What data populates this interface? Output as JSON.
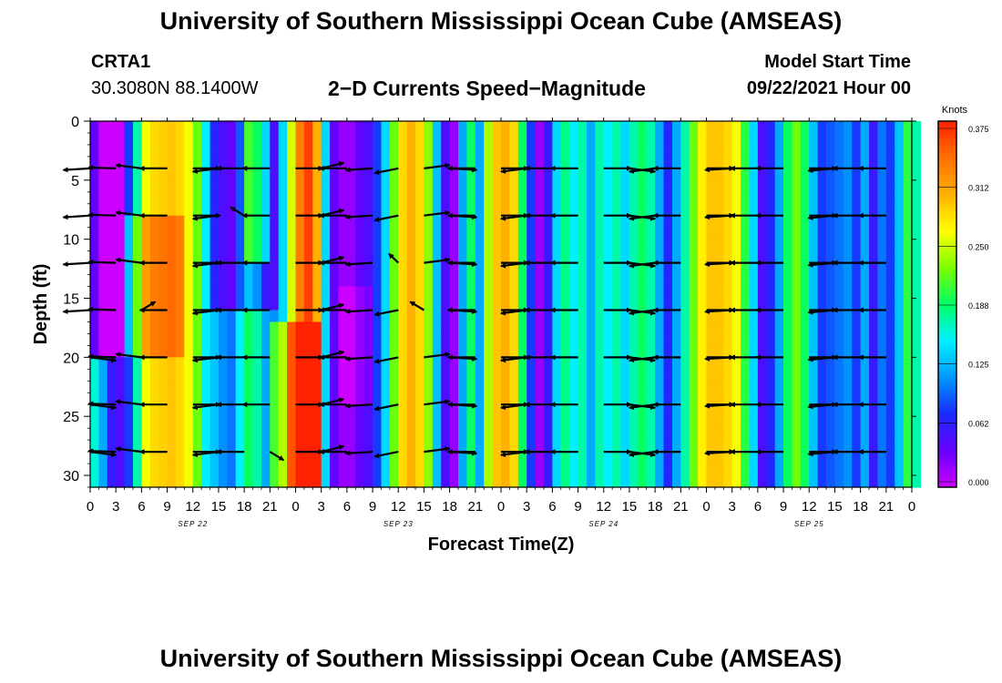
{
  "header": {
    "title": "University of Southern Mississippi Ocean Cube (AMSEAS)",
    "station_id": "CRTA1",
    "station_coords": "30.3080N  88.1400W",
    "chart_title": "2−D Currents Speed−Magnitude",
    "model_label": "Model Start Time",
    "model_date": "09/22/2021 Hour 00"
  },
  "footer": {
    "title": "University of Southern Mississippi Ocean Cube (AMSEAS)"
  },
  "chart_data": {
    "type": "heatmap",
    "title": "2−D Currents Speed−Magnitude",
    "xlabel": "Forecast Time(Z)",
    "ylabel": "Depth (ft)",
    "xlim": [
      0,
      96
    ],
    "ylim": [
      31,
      0
    ],
    "x_tick_labels": [
      "0",
      "3",
      "6",
      "9",
      "12",
      "15",
      "18",
      "21",
      "0",
      "3",
      "6",
      "9",
      "12",
      "15",
      "18",
      "21",
      "0",
      "3",
      "6",
      "9",
      "12",
      "15",
      "18",
      "21",
      "0",
      "3",
      "6",
      "9",
      "12",
      "15",
      "18",
      "21",
      "0"
    ],
    "date_labels": [
      {
        "label": "SEP 22",
        "hour": 12
      },
      {
        "label": "SEP 23",
        "hour": 36
      },
      {
        "label": "SEP 24",
        "hour": 60
      },
      {
        "label": "SEP 25",
        "hour": 84
      }
    ],
    "y_ticks": [
      0,
      5,
      10,
      15,
      20,
      25,
      30
    ],
    "y_tick_labels": [
      "0",
      "5",
      "10",
      "15",
      "20",
      "25",
      "30"
    ],
    "colorbar": {
      "unit": "Knots",
      "range": [
        0,
        0.375
      ],
      "ticks": [
        "0.375",
        "0.312",
        "0.250",
        "0.188",
        "0.125",
        "0.062",
        "0.000"
      ],
      "colors": [
        "#cc00ff",
        "#6600ff",
        "#1a2bff",
        "#0099ff",
        "#00f0ff",
        "#00ff66",
        "#7cff00",
        "#ffff00",
        "#ffb000",
        "#ff7000",
        "#ff2200"
      ]
    },
    "speed_by_hour": [
      0.16,
      0.12,
      0.06,
      0.05,
      0.08,
      0.17,
      0.26,
      0.28,
      0.285,
      0.29,
      0.28,
      0.26,
      0.22,
      0.15,
      0.07,
      0.05,
      0.04,
      0.09,
      0.13,
      0.11,
      0.06,
      0.05,
      0.14,
      0.25,
      0.33,
      0.36,
      0.3,
      0.14,
      0.04,
      0.02,
      0.02,
      0.04,
      0.05,
      0.08,
      0.14,
      0.22,
      0.28,
      0.3,
      0.28,
      0.23,
      0.13,
      0.05,
      0.02,
      0.12,
      0.19,
      0.12,
      0.24,
      0.29,
      0.3,
      0.28,
      0.19,
      0.08,
      0.02,
      0.06,
      0.14,
      0.18,
      0.15,
      0.17,
      0.12,
      0.17,
      0.15,
      0.17,
      0.14,
      0.17,
      0.19,
      0.17,
      0.12,
      0.07,
      0.12,
      0.17,
      0.22,
      0.27,
      0.29,
      0.29,
      0.28,
      0.26,
      0.2,
      0.14,
      0.05,
      0.07,
      0.12,
      0.19,
      0.22,
      0.19,
      0.13,
      0.08,
      0.09,
      0.1,
      0.11,
      0.08,
      0.12,
      0.06,
      0.1,
      0.08,
      0.13,
      0.2,
      0.17
    ],
    "anomalies": [
      {
        "hours": [
          0,
          4
        ],
        "depths": [
          0,
          20
        ],
        "delta": -0.12
      },
      {
        "hours": [
          4,
          11
        ],
        "depths": [
          8,
          20
        ],
        "delta": 0.05
      },
      {
        "hours": [
          14,
          22
        ],
        "depths": [
          16,
          31
        ],
        "delta": 0.06
      },
      {
        "hours": [
          18,
          21
        ],
        "depths": [
          0,
          12
        ],
        "delta": 0.08
      },
      {
        "hours": [
          21,
          27
        ],
        "depths": [
          17,
          31
        ],
        "delta": 0.1
      },
      {
        "hours": [
          29,
          33
        ],
        "depths": [
          14,
          24
        ],
        "delta": -0.02
      }
    ],
    "vector_depths": [
      4,
      8,
      12,
      16,
      20,
      24,
      28
    ],
    "vector_hours": [
      0,
      3,
      6,
      9,
      12,
      15,
      18,
      21,
      24,
      27,
      30,
      33,
      36,
      39,
      42,
      45,
      48,
      51,
      54,
      57,
      60,
      63,
      66,
      69,
      72,
      75,
      78,
      81,
      84,
      87,
      90,
      93,
      96
    ],
    "vector_angles_deg": [
      190,
      175,
      160,
      180,
      0,
      200,
      180,
      180,
      0,
      35,
      180,
      190,
      210,
      20,
      350,
      180,
      0,
      200,
      180,
      180,
      0,
      340,
      200,
      180,
      0,
      190,
      180,
      180,
      0,
      195,
      180,
      180,
      0
    ],
    "vector_angle_overrides": [
      {
        "depth": 8,
        "hour": 18,
        "angle": 120
      },
      {
        "depth": 12,
        "hour": 36,
        "angle": 110
      },
      {
        "depth": 16,
        "hour": 6,
        "angle": 60
      },
      {
        "depth": 16,
        "hour": 39,
        "angle": 120
      },
      {
        "depth": 20,
        "hour": 0,
        "angle": 340
      },
      {
        "depth": 24,
        "hour": 0,
        "angle": 340
      },
      {
        "depth": 28,
        "hour": 21,
        "angle": 300
      },
      {
        "depth": 28,
        "hour": 0,
        "angle": 340
      }
    ]
  }
}
